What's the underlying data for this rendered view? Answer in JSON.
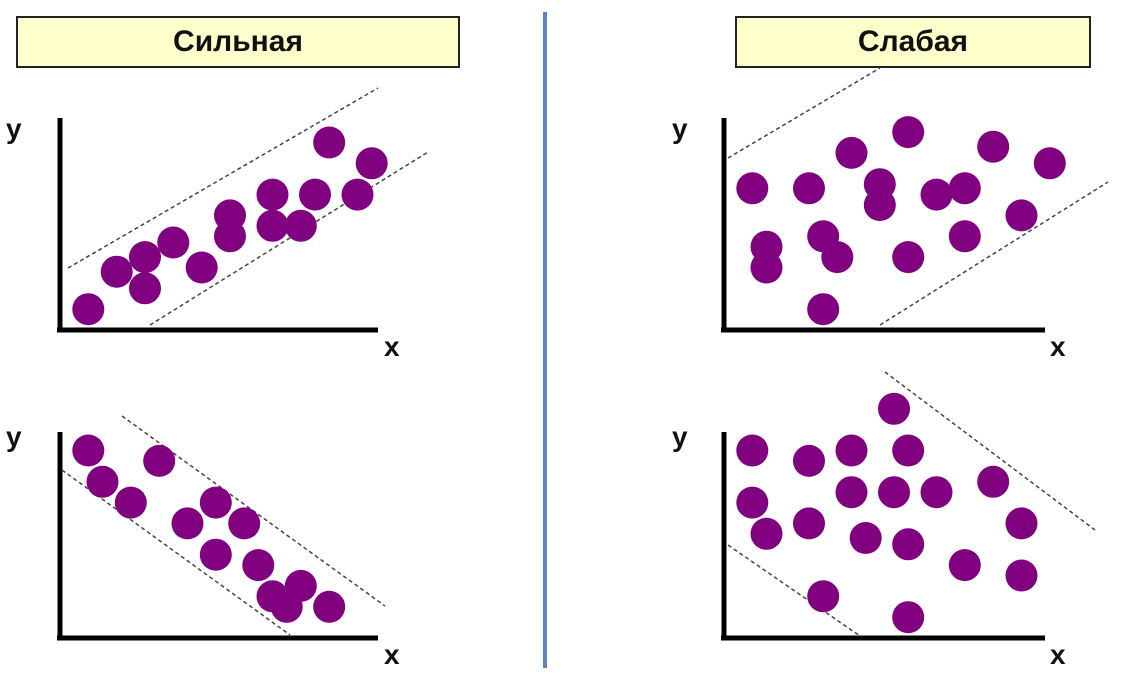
{
  "headers": {
    "strong": "Сильная",
    "weak": "Слабая"
  },
  "axis_labels": {
    "y": "y",
    "x": "x"
  },
  "colors": {
    "dot": "#800080",
    "divider": "#5b86c1",
    "header_fill": "#ffffcc"
  },
  "chart_data": [
    {
      "type": "scatter",
      "correlation": "strong positive",
      "points": [
        [
          1.0,
          1.0
        ],
        [
          2.0,
          2.8
        ],
        [
          3.0,
          3.5
        ],
        [
          3.0,
          2.0
        ],
        [
          4.0,
          4.2
        ],
        [
          5.0,
          3.0
        ],
        [
          6.0,
          5.5
        ],
        [
          6.0,
          4.5
        ],
        [
          7.5,
          6.5
        ],
        [
          7.5,
          5.0
        ],
        [
          8.5,
          5.0
        ],
        [
          9.0,
          6.5
        ],
        [
          9.5,
          9.0
        ],
        [
          10.5,
          6.5
        ],
        [
          11.0,
          8.0
        ]
      ]
    },
    {
      "type": "scatter",
      "correlation": "weak positive",
      "points": [
        [
          1.0,
          6.8
        ],
        [
          1.5,
          4.0
        ],
        [
          1.5,
          3.0
        ],
        [
          3.0,
          6.8
        ],
        [
          3.5,
          4.5
        ],
        [
          4.0,
          3.5
        ],
        [
          3.5,
          1.0
        ],
        [
          4.5,
          8.5
        ],
        [
          5.5,
          6.0
        ],
        [
          5.5,
          7.0
        ],
        [
          6.5,
          9.5
        ],
        [
          6.5,
          3.5
        ],
        [
          7.5,
          6.5
        ],
        [
          8.5,
          4.5
        ],
        [
          8.5,
          6.8
        ],
        [
          9.5,
          8.8
        ],
        [
          10.5,
          5.5
        ],
        [
          11.5,
          8.0
        ]
      ]
    },
    {
      "type": "scatter",
      "correlation": "strong negative",
      "points": [
        [
          1.0,
          9.0
        ],
        [
          1.5,
          7.5
        ],
        [
          2.5,
          6.5
        ],
        [
          3.5,
          8.5
        ],
        [
          4.5,
          5.5
        ],
        [
          5.5,
          6.5
        ],
        [
          5.5,
          4.0
        ],
        [
          6.5,
          5.5
        ],
        [
          7.0,
          3.5
        ],
        [
          7.5,
          2.0
        ],
        [
          8.5,
          2.5
        ],
        [
          8.0,
          1.5
        ],
        [
          9.5,
          1.5
        ]
      ]
    },
    {
      "type": "scatter",
      "correlation": "weak negative",
      "points": [
        [
          1.0,
          9.0
        ],
        [
          1.0,
          6.5
        ],
        [
          1.5,
          5.0
        ],
        [
          3.0,
          8.5
        ],
        [
          3.0,
          5.5
        ],
        [
          3.5,
          2.0
        ],
        [
          4.5,
          9.0
        ],
        [
          4.5,
          7.0
        ],
        [
          5.0,
          4.8
        ],
        [
          6.5,
          9.0
        ],
        [
          6.0,
          7.0
        ],
        [
          6.5,
          4.5
        ],
        [
          6.5,
          1.0
        ],
        [
          7.5,
          7.0
        ],
        [
          8.5,
          3.5
        ],
        [
          9.5,
          7.5
        ],
        [
          10.5,
          5.5
        ],
        [
          10.5,
          3.0
        ],
        [
          6.0,
          11.0
        ]
      ]
    }
  ]
}
